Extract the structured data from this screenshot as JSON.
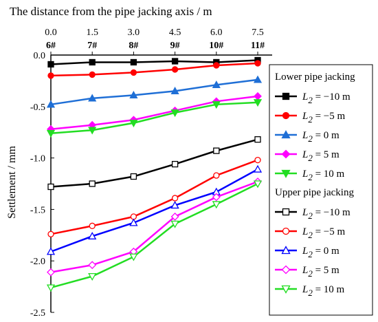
{
  "chart_data": {
    "type": "line",
    "title": "The distance from the pipe jacking axis / m",
    "ylabel": "Settlement / mm",
    "xlabel": "",
    "x": [
      0.0,
      1.5,
      3.0,
      4.5,
      6.0,
      7.5
    ],
    "x_tick_labels": [
      "0.0",
      "1.5",
      "3.0",
      "4.5",
      "6.0",
      "7.5"
    ],
    "categories": [
      "6#",
      "7#",
      "8#",
      "9#",
      "10#",
      "11#"
    ],
    "y_ticks": [
      "0.0",
      "-0.5",
      "-1.0",
      "-1.5",
      "-2.0",
      "-2.5"
    ],
    "ylim": [
      -2.5,
      0.0
    ],
    "xlim": [
      0.0,
      7.5
    ],
    "legend_position": "right",
    "legend_groups": [
      {
        "title": "Lower pipe jacking",
        "series": [
          {
            "label": "= −10 m",
            "sub": "2",
            "var": "L",
            "color": "#000000",
            "marker": "square",
            "filled": true,
            "values": [
              -0.09,
              -0.07,
              -0.07,
              -0.06,
              -0.07,
              -0.05
            ]
          },
          {
            "label": "= −5 m",
            "sub": "2",
            "var": "L",
            "color": "#ff0000",
            "marker": "circle",
            "filled": true,
            "values": [
              -0.2,
              -0.19,
              -0.17,
              -0.14,
              -0.1,
              -0.08
            ]
          },
          {
            "label": "= 0 m",
            "sub": "2",
            "var": "L",
            "color": "#1f6fd6",
            "marker": "triangle-up",
            "filled": true,
            "values": [
              -0.48,
              -0.42,
              -0.39,
              -0.35,
              -0.29,
              -0.24
            ]
          },
          {
            "label": "= 5 m",
            "sub": "2",
            "var": "L",
            "color": "#ff00ff",
            "marker": "diamond",
            "filled": true,
            "values": [
              -0.72,
              -0.68,
              -0.63,
              -0.54,
              -0.45,
              -0.4
            ]
          },
          {
            "label": "= 10 m",
            "sub": "2",
            "var": "L",
            "color": "#22dd22",
            "marker": "triangle-down",
            "filled": true,
            "values": [
              -0.76,
              -0.73,
              -0.66,
              -0.56,
              -0.48,
              -0.46
            ]
          }
        ]
      },
      {
        "title": "Upper pipe jacking",
        "series": [
          {
            "label": "= −10 m",
            "sub": "2",
            "var": "L",
            "color": "#000000",
            "marker": "square",
            "filled": false,
            "values": [
              -1.28,
              -1.25,
              -1.18,
              -1.06,
              -0.93,
              -0.82
            ]
          },
          {
            "label": "= −5 m",
            "sub": "2",
            "var": "L",
            "color": "#ff0000",
            "marker": "circle",
            "filled": false,
            "values": [
              -1.74,
              -1.66,
              -1.57,
              -1.39,
              -1.17,
              -1.02
            ]
          },
          {
            "label": "= 0 m",
            "sub": "2",
            "var": "L",
            "color": "#0000ff",
            "marker": "triangle-up",
            "filled": false,
            "values": [
              -1.91,
              -1.76,
              -1.63,
              -1.46,
              -1.33,
              -1.11
            ]
          },
          {
            "label": "= 5 m",
            "sub": "2",
            "var": "L",
            "color": "#ff00ff",
            "marker": "diamond",
            "filled": false,
            "values": [
              -2.11,
              -2.04,
              -1.91,
              -1.57,
              -1.38,
              -1.23
            ]
          },
          {
            "label": "= 10 m",
            "sub": "2",
            "var": "L",
            "color": "#22dd22",
            "marker": "triangle-down",
            "filled": false,
            "values": [
              -2.26,
              -2.15,
              -1.96,
              -1.64,
              -1.45,
              -1.25
            ]
          }
        ]
      }
    ]
  }
}
